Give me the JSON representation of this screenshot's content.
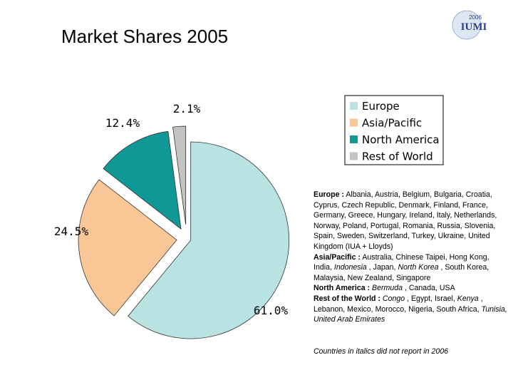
{
  "chart_data": {
    "type": "pie",
    "title": "Market Shares 2005",
    "categories": [
      "Europe",
      "Asia/Pacific",
      "North America",
      "Rest of World"
    ],
    "values": [
      61.0,
      24.5,
      12.4,
      2.1
    ],
    "value_labels": [
      "61.0%",
      "24.5%",
      "12.4%",
      "2.1%"
    ],
    "colors": [
      "#b9e2e3",
      "#fbc796",
      "#0f9896",
      "#c3c3c3"
    ],
    "legend": "top-right"
  },
  "logo": {
    "year": "2006",
    "text": "IUMI"
  },
  "notes": [
    {
      "label": "Europe :",
      "parts": [
        {
          "text": "Albania, Austria, Belgium, Bulgaria, Croatia, Cyprus, Czech Republic, Denmark, Finland, France, Germany, Greece, Hungary, Ireland, Italy, Netherlands, Norway, Poland, Portugal, Romania, Russia, Slovenia, Spain, Sweden, Switzerland, Turkey, Ukraine, United Kingdom (IUA + Lloyds)",
          "italic": false
        }
      ]
    },
    {
      "label": "Asia/Pacific :",
      "parts": [
        {
          "text": "Australia, Chinese Taipei, Hong Kong, India,",
          "italic": false
        },
        {
          "text": "Indonesia",
          "italic": true
        },
        {
          "text": ", Japan,",
          "italic": false
        },
        {
          "text": "North Korea",
          "italic": true
        },
        {
          "text": ", South Korea, Malaysia, New Zealand, Singapore",
          "italic": false
        }
      ]
    },
    {
      "label": "North America :",
      "parts": [
        {
          "text": "Bermuda",
          "italic": true
        },
        {
          "text": ", Canada, USA",
          "italic": false
        }
      ]
    },
    {
      "label": "Rest of the World :",
      "parts": [
        {
          "text": "Congo",
          "italic": true
        },
        {
          "text": ", Egypt, Israel,",
          "italic": false
        },
        {
          "text": "Kenya",
          "italic": true
        },
        {
          "text": ", Lebanon, Mexico, Morocco, Nigeria, South Africa,",
          "italic": false
        },
        {
          "text": "Tunisia, United Arab Emirates",
          "italic": true
        }
      ]
    }
  ],
  "footnote": "Countries in italics did not report in 2006"
}
